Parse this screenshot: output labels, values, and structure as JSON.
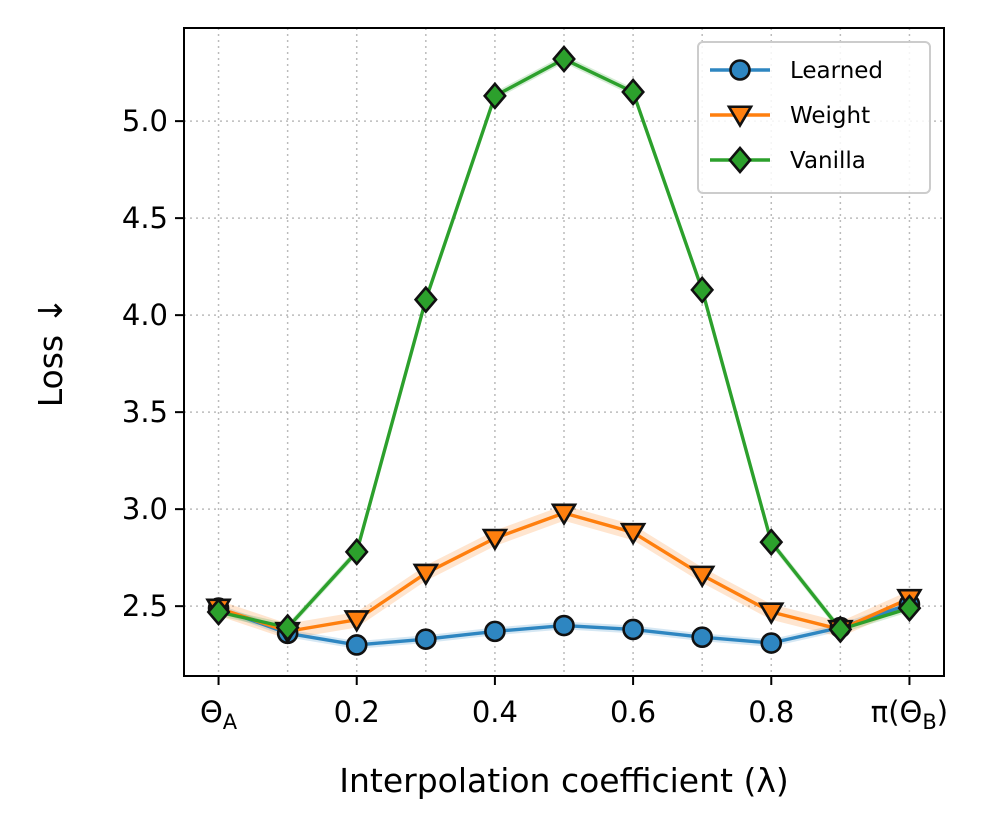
{
  "chart_data": {
    "type": "line",
    "title": "",
    "xlabel": "Interpolation coefficient (λ)",
    "ylabel": "Loss ↓",
    "x": [
      0,
      0.1,
      0.2,
      0.3,
      0.4,
      0.5,
      0.6,
      0.7,
      0.8,
      0.9,
      1.0
    ],
    "xlim": [
      -0.05,
      1.05
    ],
    "ylim": [
      2.14,
      5.48
    ],
    "x_ticks": [
      {
        "value": 0,
        "label": "Θ",
        "sub": "A",
        "wrap_open": "",
        "wrap_close": ""
      },
      {
        "value": 0.2,
        "label": "0.2",
        "sub": "",
        "wrap_open": "",
        "wrap_close": ""
      },
      {
        "value": 0.4,
        "label": "0.4",
        "sub": "",
        "wrap_open": "",
        "wrap_close": ""
      },
      {
        "value": 0.6,
        "label": "0.6",
        "sub": "",
        "wrap_open": "",
        "wrap_close": ""
      },
      {
        "value": 0.8,
        "label": "0.8",
        "sub": "",
        "wrap_open": "",
        "wrap_close": ""
      },
      {
        "value": 1.0,
        "label": "Θ",
        "sub": "B",
        "wrap_open": "π(",
        "wrap_close": ")"
      }
    ],
    "y_ticks": [
      {
        "value": 2.5,
        "label": "2.5"
      },
      {
        "value": 3.0,
        "label": "3.0"
      },
      {
        "value": 3.5,
        "label": "3.5"
      },
      {
        "value": 4.0,
        "label": "4.0"
      },
      {
        "value": 4.5,
        "label": "4.5"
      },
      {
        "value": 5.0,
        "label": "5.0"
      }
    ],
    "grid": true,
    "legend_position": "top-right",
    "series": [
      {
        "name": "Learned",
        "color": "#2e86c1",
        "marker": "circle",
        "values": [
          2.49,
          2.36,
          2.3,
          2.33,
          2.37,
          2.4,
          2.38,
          2.34,
          2.31,
          2.39,
          2.51
        ],
        "band": 0.02
      },
      {
        "name": "Weight",
        "color": "#ff7f0e",
        "marker": "triangle-down",
        "values": [
          2.49,
          2.37,
          2.43,
          2.67,
          2.85,
          2.98,
          2.88,
          2.66,
          2.47,
          2.38,
          2.54
        ],
        "band": 0.04
      },
      {
        "name": "Vanilla",
        "color": "#2ca02c",
        "marker": "diamond",
        "values": [
          2.47,
          2.39,
          2.78,
          4.08,
          5.13,
          5.32,
          5.15,
          4.13,
          2.83,
          2.38,
          2.49
        ],
        "band": 0.02
      }
    ]
  }
}
